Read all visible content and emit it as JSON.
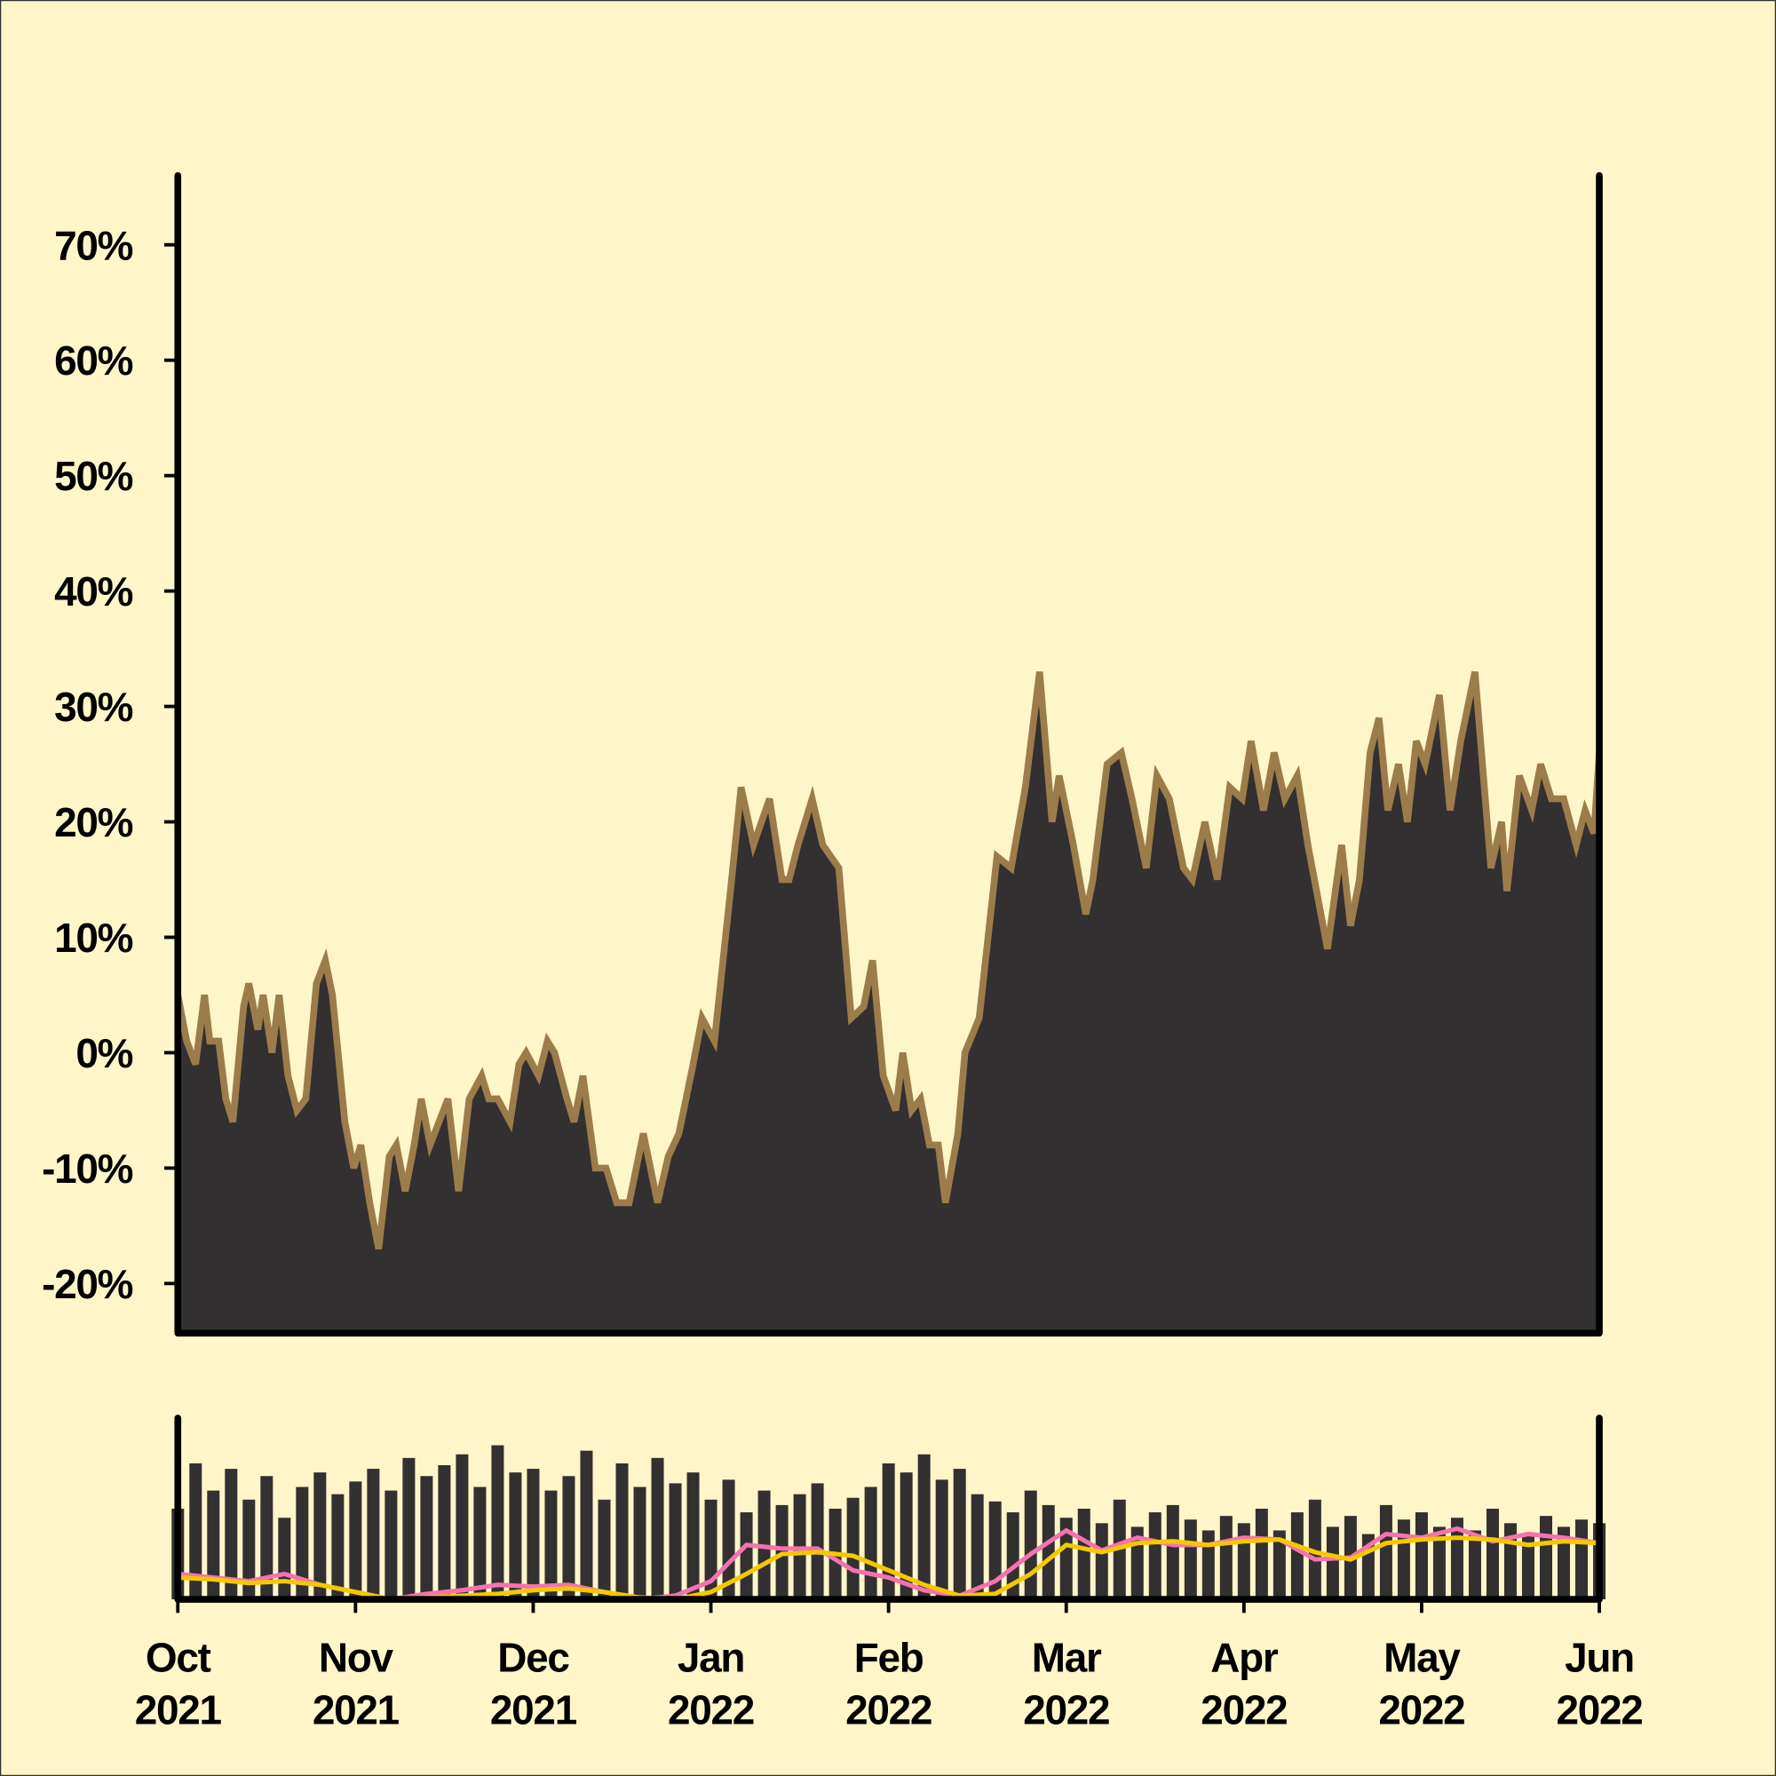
{
  "chart_data": [
    {
      "type": "area",
      "color": "#333031",
      "line_color": "#9c7c4a",
      "xlim": [
        0,
        8
      ],
      "ylim": [
        -24.3,
        76
      ],
      "yticks": [
        {
          "value": -20,
          "label": "-20%"
        },
        {
          "value": -10,
          "label": "-10%"
        },
        {
          "value": 0,
          "label": "0%"
        },
        {
          "value": 10,
          "label": "10%"
        },
        {
          "value": 20,
          "label": "20%"
        },
        {
          "value": 30,
          "label": "30%"
        },
        {
          "value": 40,
          "label": "40%"
        },
        {
          "value": 50,
          "label": "50%"
        },
        {
          "value": 60,
          "label": "60%"
        },
        {
          "value": 70,
          "label": "70%"
        }
      ],
      "x": [
        0,
        0.05,
        0.1,
        0.15,
        0.18,
        0.23,
        0.27,
        0.31,
        0.37,
        0.4,
        0.45,
        0.48,
        0.53,
        0.57,
        0.62,
        0.67,
        0.72,
        0.78,
        0.83,
        0.87,
        0.94,
        0.99,
        1.03,
        1.08,
        1.13,
        1.19,
        1.23,
        1.28,
        1.33,
        1.37,
        1.42,
        1.47,
        1.52,
        1.58,
        1.64,
        1.71,
        1.75,
        1.8,
        1.87,
        1.92,
        1.96,
        2.03,
        2.08,
        2.12,
        2.19,
        2.23,
        2.28,
        2.35,
        2.41,
        2.47,
        2.54,
        2.62,
        2.7,
        2.76,
        2.82,
        2.9,
        2.95,
        3.02,
        3.11,
        3.17,
        3.24,
        3.33,
        3.4,
        3.44,
        3.49,
        3.57,
        3.63,
        3.72,
        3.79,
        3.86,
        3.91,
        3.97,
        4.04,
        4.08,
        4.13,
        4.18,
        4.23,
        4.28,
        4.32,
        4.39,
        4.43,
        4.51,
        4.61,
        4.69,
        4.77,
        4.85,
        4.92,
        4.96,
        5.04,
        5.11,
        5.15,
        5.23,
        5.31,
        5.37,
        5.45,
        5.51,
        5.58,
        5.66,
        5.71,
        5.78,
        5.85,
        5.92,
        5.99,
        6.04,
        6.11,
        6.17,
        6.23,
        6.3,
        6.36,
        6.47,
        6.55,
        6.6,
        6.65,
        6.71,
        6.76,
        6.81,
        6.87,
        6.92,
        6.97,
        7.02,
        7.1,
        7.16,
        7.22,
        7.3,
        7.39,
        7.45,
        7.48,
        7.55,
        7.62,
        7.67,
        7.73,
        7.8,
        7.87,
        7.92,
        7.97,
        8
      ],
      "values": [
        5,
        1,
        -1,
        5,
        1,
        1,
        -4,
        -6,
        4,
        6,
        2,
        5,
        0,
        5,
        -2,
        -5,
        -4,
        6,
        8,
        5,
        -6,
        -10,
        -8,
        -13,
        -17,
        -9,
        -8,
        -12,
        -8,
        -4,
        -8,
        -6,
        -4,
        -12,
        -4,
        -2,
        -4,
        -4,
        -6,
        -1,
        0,
        -2,
        1,
        0,
        -4,
        -6,
        -2,
        -10,
        -10,
        -13,
        -13,
        -7,
        -13,
        -9,
        -7,
        -1,
        3,
        1,
        14,
        23,
        18,
        22,
        15,
        15,
        18,
        22,
        18,
        16,
        3,
        4,
        8,
        -2,
        -5,
        0,
        -5,
        -4,
        -8,
        -8,
        -13,
        -7,
        0,
        3,
        17,
        16,
        23,
        33,
        20,
        24,
        18,
        12,
        15,
        25,
        26,
        22,
        16,
        24,
        22,
        16,
        15,
        20,
        15,
        23,
        22,
        27,
        21,
        26,
        22,
        24,
        18,
        9,
        18,
        11,
        15,
        26,
        29,
        21,
        25,
        20,
        27,
        25,
        31,
        21,
        27,
        33,
        16,
        20,
        14,
        24,
        21,
        25,
        22,
        22,
        18,
        21,
        19,
        26
      ]
    },
    {
      "type": "bar",
      "color": "#333031",
      "xlim": [
        0,
        8
      ],
      "ylim": [
        0,
        100
      ],
      "xticks": [
        {
          "value": 0,
          "label": "Oct 2021"
        },
        {
          "value": 1,
          "label": "Nov 2021"
        },
        {
          "value": 2,
          "label": "Dec 2021"
        },
        {
          "value": 3,
          "label": "Jan 2022"
        },
        {
          "value": 4,
          "label": "Feb 2022"
        },
        {
          "value": 5,
          "label": "Mar 2022"
        },
        {
          "value": 6,
          "label": "Apr 2022"
        },
        {
          "value": 7,
          "label": "May 2022"
        },
        {
          "value": 8,
          "label": "Jun 2022"
        }
      ],
      "x": [
        0,
        0.1,
        0.2,
        0.3,
        0.4,
        0.5,
        0.6,
        0.7,
        0.8,
        0.9,
        1,
        1.1,
        1.2,
        1.3,
        1.4,
        1.5,
        1.6,
        1.7,
        1.8,
        1.9,
        2,
        2.1,
        2.2,
        2.3,
        2.4,
        2.5,
        2.6,
        2.7,
        2.8,
        2.9,
        3,
        3.1,
        3.2,
        3.3,
        3.4,
        3.5,
        3.6,
        3.7,
        3.8,
        3.9,
        4,
        4.1,
        4.2,
        4.3,
        4.4,
        4.5,
        4.6,
        4.7,
        4.8,
        4.9,
        5,
        5.1,
        5.2,
        5.3,
        5.4,
        5.5,
        5.6,
        5.7,
        5.8,
        5.9,
        6,
        6.1,
        6.2,
        6.3,
        6.4,
        6.5,
        6.6,
        6.7,
        6.8,
        6.9,
        7,
        7.1,
        7.2,
        7.3,
        7.4,
        7.5,
        7.6,
        7.7,
        7.8,
        7.9,
        8
      ],
      "values": [
        50,
        75,
        60,
        72,
        55,
        68,
        45,
        62,
        70,
        58,
        65,
        72,
        60,
        78,
        68,
        74,
        80,
        62,
        85,
        70,
        72,
        60,
        68,
        82,
        55,
        75,
        62,
        78,
        64,
        70,
        55,
        66,
        48,
        60,
        52,
        58,
        64,
        50,
        56,
        62,
        75,
        70,
        80,
        66,
        72,
        58,
        54,
        48,
        60,
        52,
        45,
        50,
        42,
        55,
        40,
        48,
        52,
        44,
        38,
        46,
        42,
        50,
        38,
        48,
        55,
        40,
        46,
        36,
        52,
        44,
        48,
        40,
        45,
        38,
        50,
        42,
        36,
        46,
        40,
        44,
        42
      ],
      "overlays": [
        {
          "type": "line",
          "color": "#f472b0",
          "x": [
            0,
            0.2,
            0.4,
            0.6,
            0.8,
            1,
            1.2,
            1.4,
            1.6,
            1.8,
            2,
            2.2,
            2.4,
            2.6,
            2.8,
            3,
            3.2,
            3.4,
            3.6,
            3.8,
            4,
            4.2,
            4.4,
            4.6,
            4.8,
            5,
            5.2,
            5.4,
            5.6,
            5.8,
            6,
            6.2,
            6.4,
            6.6,
            6.8,
            7,
            7.2,
            7.4,
            7.6,
            7.8,
            8
          ],
          "values": [
            14,
            12,
            10,
            14,
            8,
            4,
            0,
            3,
            5,
            8,
            7,
            8,
            4,
            0,
            2,
            10,
            30,
            28,
            28,
            16,
            12,
            5,
            2,
            10,
            25,
            38,
            27,
            34,
            30,
            30,
            34,
            33,
            22,
            23,
            36,
            34,
            39,
            32,
            36,
            34,
            31
          ]
        },
        {
          "type": "line",
          "color": "#f5c800",
          "x": [
            0,
            0.2,
            0.4,
            0.6,
            0.8,
            1,
            1.2,
            1.4,
            1.6,
            1.8,
            2,
            2.2,
            2.4,
            2.6,
            2.8,
            3,
            3.2,
            3.4,
            3.6,
            3.8,
            4,
            4.2,
            4.4,
            4.6,
            4.8,
            5,
            5.2,
            5.4,
            5.6,
            5.8,
            6,
            6.2,
            6.4,
            6.6,
            6.8,
            7,
            7.2,
            7.4,
            7.6,
            7.8,
            8
          ],
          "values": [
            12,
            11,
            9,
            10,
            8,
            4,
            0,
            1,
            2,
            3,
            5,
            6,
            4,
            1,
            0,
            4,
            14,
            25,
            26,
            24,
            16,
            8,
            2,
            3,
            14,
            30,
            26,
            31,
            32,
            30,
            32,
            33,
            26,
            22,
            31,
            33,
            34,
            33,
            30,
            32,
            31
          ]
        }
      ]
    }
  ]
}
